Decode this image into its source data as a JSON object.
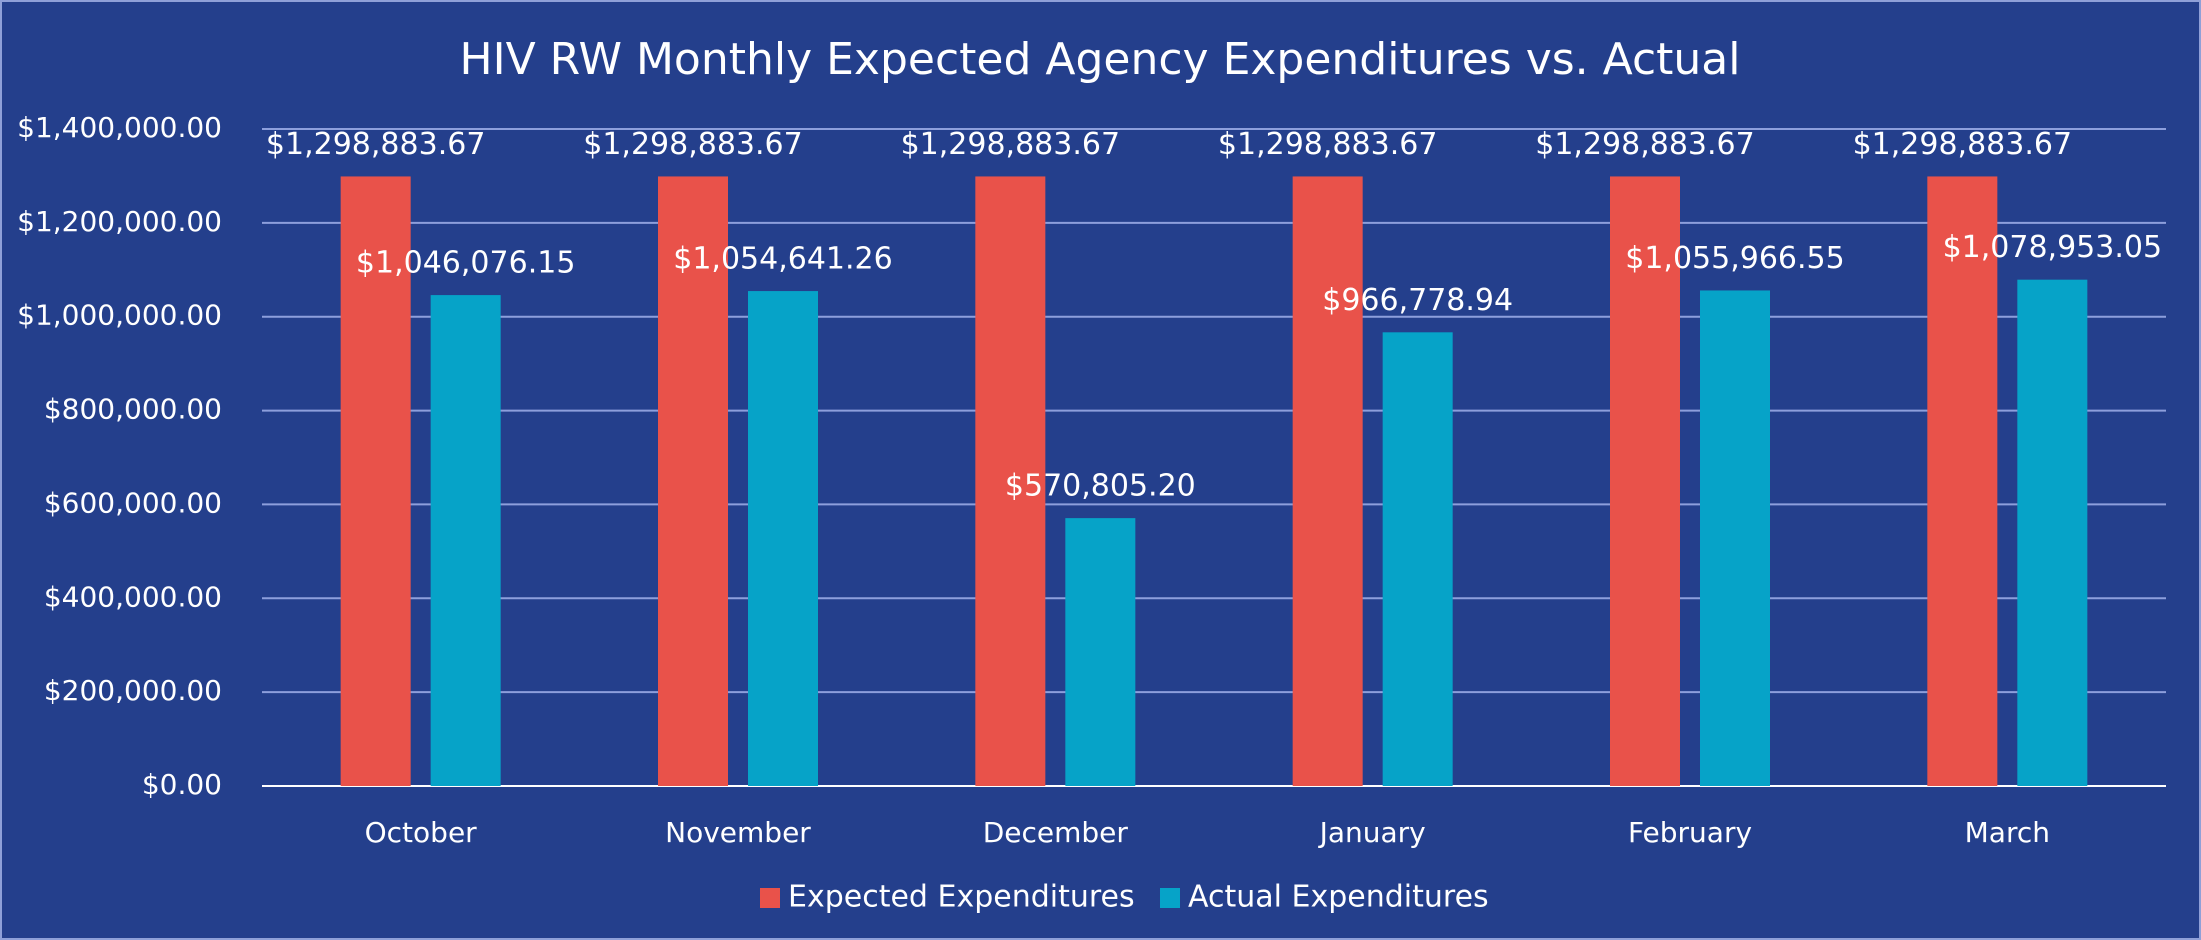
{
  "chart_data": {
    "type": "bar",
    "title": "HIV RW Monthly Expected Agency Expenditures vs. Actual",
    "categories": [
      "October",
      "November",
      "December",
      "January",
      "February",
      "March"
    ],
    "series": [
      {
        "name": "Expected Expenditures",
        "color": "#e9524a",
        "values": [
          1298883.67,
          1298883.67,
          1298883.67,
          1298883.67,
          1298883.67,
          1298883.67
        ],
        "value_labels": [
          "$1,298,883.67",
          "$1,298,883.67",
          "$1,298,883.67",
          "$1,298,883.67",
          "$1,298,883.67",
          "$1,298,883.67"
        ]
      },
      {
        "name": "Actual Expenditures",
        "color": "#06a3c8",
        "values": [
          1046076.15,
          1054641.26,
          570805.2,
          966778.94,
          1055966.55,
          1078953.05
        ],
        "value_labels": [
          "$1,046,076.15",
          "$1,054,641.26",
          "$570,805.20",
          "$966,778.94",
          "$1,055,966.55",
          "$1,078,953.05"
        ]
      }
    ],
    "ylim": [
      0,
      1400000
    ],
    "yticks": [
      {
        "value": 0,
        "label": "$0.00"
      },
      {
        "value": 200000,
        "label": "$200,000.00"
      },
      {
        "value": 400000,
        "label": "$400,000.00"
      },
      {
        "value": 600000,
        "label": "$600,000.00"
      },
      {
        "value": 800000,
        "label": "$800,000.00"
      },
      {
        "value": 1000000,
        "label": "$1,000,000.00"
      },
      {
        "value": 1200000,
        "label": "$1,200,000.00"
      },
      {
        "value": 1400000,
        "label": "$1,400,000.00"
      }
    ],
    "grid": true,
    "legend": "bottom"
  }
}
